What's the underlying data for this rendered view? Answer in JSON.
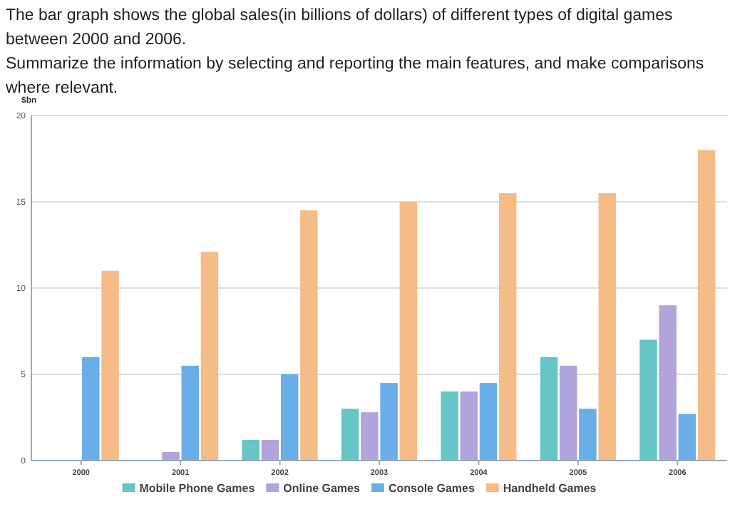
{
  "chart_data": {
    "type": "bar",
    "title": "The bar graph shows the global sales(in billions of dollars) of different types of digital games between 2000 and 2006.",
    "subtitle": "Summarize the information by selecting and reporting the main features, and make comparisons where relevant.",
    "ylabel": "$bn",
    "categories": [
      "2000",
      "2001",
      "2002",
      "2003",
      "2004",
      "2005",
      "2006"
    ],
    "series": [
      {
        "name": "Mobile Phone Games",
        "color": "#66c5c5",
        "values": [
          0,
          0,
          1.2,
          3,
          4,
          6,
          7
        ]
      },
      {
        "name": "Online Games",
        "color": "#b3a3db",
        "values": [
          0,
          0.5,
          1.2,
          2.8,
          4,
          5.5,
          9
        ]
      },
      {
        "name": "Console Games",
        "color": "#6aaee8",
        "values": [
          6,
          5.5,
          5,
          4.5,
          4.5,
          3,
          2.7
        ]
      },
      {
        "name": "Handheld Games",
        "color": "#f5bc88",
        "values": [
          11,
          12.1,
          14.5,
          15,
          15.5,
          15.5,
          18
        ]
      }
    ],
    "ylim": [
      0,
      20
    ],
    "yticks": [
      0,
      5,
      10,
      15,
      20
    ],
    "grid": "y",
    "legend": "bottom"
  }
}
